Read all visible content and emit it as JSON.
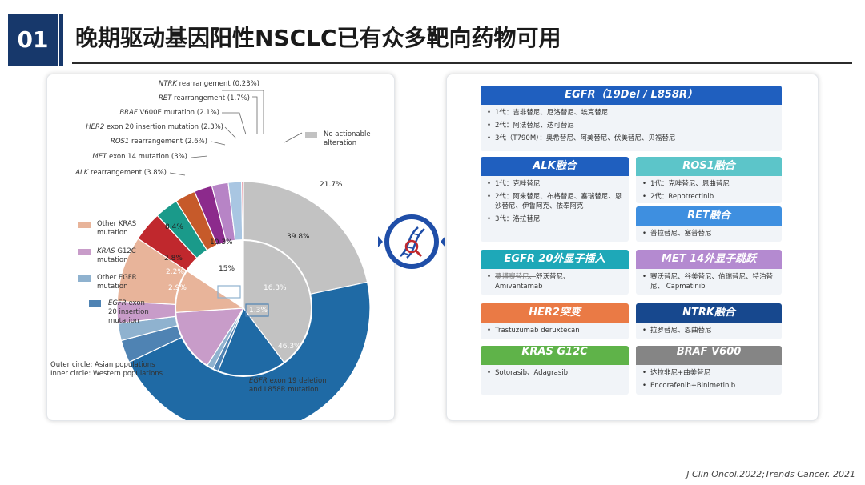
{
  "header": {
    "number": "01",
    "title": "晚期驱动基因阳性NSCLC已有众多靶向药物可用"
  },
  "chart": {
    "left_labels": [
      {
        "gene": "NTRK",
        "rest": " rearrangement (0.23%)"
      },
      {
        "gene": "RET",
        "rest": " rearrangement (1.7%)"
      },
      {
        "gene": "BRAF",
        "rest": " V600E mutation (2.1%)"
      },
      {
        "gene": "HER2",
        "rest": " exon 20 insertion mutation (2.3%)"
      },
      {
        "gene": "ROS1",
        "rest": " rearrangement (2.6%)"
      },
      {
        "gene": "MET",
        "rest": " exon 14 mutation (3%)"
      },
      {
        "gene": "ALK",
        "rest": " rearrangement (3.8%)"
      }
    ],
    "no_action_legend": "No actionable alteration",
    "legends": [
      {
        "line1_gene": "",
        "line1": "Other KRAS",
        "line2": "mutation",
        "color": "#e8b49a"
      },
      {
        "line1_gene": "KRAS",
        "line1": " G12C",
        "line2": "mutation",
        "color": "#c89cc9"
      },
      {
        "line1_gene": "",
        "line1": "Other EGFR",
        "line2": "mutation",
        "color": "#8fb2cf"
      },
      {
        "line1_gene": "EGFR",
        "line1": " exon",
        "line2": "20 insertion",
        "line3": "mutation",
        "color": "#4f83b3"
      }
    ],
    "outer_values": {
      "no_action": "21.7%",
      "egfr19": "46.3%",
      "other_kras": "8.4%",
      "kras_g12c": "2.8%",
      "other_egfr": "2.2%",
      "egfr20": "2.9%"
    },
    "inner_values": {
      "no_action": "39.8%",
      "egfr19": "16.3%",
      "other_kras": "10.3%",
      "kras_g12c": "15%",
      "other_egfr": "1.6%",
      "egfr20": "1.3%"
    },
    "note_line1": "Outer circle: Asian populations",
    "note_line2": "Inner circle: Western populations",
    "egfr_legend_gene": "EGFR",
    "egfr_legend_rest": " exon 19 deletion",
    "egfr_legend_line2": "and L858R mutation",
    "colors": {
      "no_action": "#c2c2c2",
      "egfr19": "#1f6aa5",
      "other_kras": "#e8b49a",
      "kras_g12c": "#c89cc9",
      "other_egfr": "#8fb2cf",
      "egfr20": "#4f83b3",
      "alk": "#c0282d",
      "met": "#1a9a8a",
      "ros1": "#c65a2a",
      "her2": "#8c2a8c",
      "braf": "#b784c6",
      "ret": "#a9c6e2",
      "ntrk": "#e07a8a"
    }
  },
  "cards": {
    "egfr": {
      "title": "EGFR（19Del / L858R）",
      "items": [
        "1代：吉非替尼、厄洛替尼、埃克替尼",
        "2代：阿法替尼、达可替尼",
        "3代（T790M）：奥希替尼、阿美替尼、伏美替尼、贝福替尼"
      ],
      "color": "#1f5fbf"
    },
    "alk": {
      "title": "ALK融合",
      "items": [
        "1代：克唑替尼",
        "2代：阿来替尼、布格替尼、塞瑞替尼、恩沙替尼、伊鲁阿克、依奉阿克",
        "3代：洛拉替尼"
      ],
      "color": "#1f5fbf"
    },
    "ros1": {
      "title": "ROS1融合",
      "items": [
        "1代：克唑替尼、恩曲替尼",
        "2代：Repotrectinib"
      ],
      "color": "#5cc5c9"
    },
    "ret": {
      "title": "RET融合",
      "items": [
        "普拉替尼、塞普替尼"
      ],
      "color": "#3e8fe0"
    },
    "egfr20": {
      "title": "EGFR 20外显子插入",
      "strike": "莫博赛替尼、",
      "items_rest": "舒沃替尼、",
      "items_line2": "Amivantamab",
      "color": "#1ea8b8"
    },
    "met": {
      "title": "MET 14外显子跳跃",
      "items": [
        "赛沃替尼、谷美替尼、伯瑞替尼、特泊替尼、 Capmatinib"
      ],
      "color": "#b48ad0"
    },
    "her2": {
      "title": "HER2突变",
      "items": [
        "Trastuzumab deruxtecan"
      ],
      "color": "#ea7a45"
    },
    "ntrk": {
      "title": "NTRK融合",
      "items": [
        "拉罗替尼、恩曲替尼"
      ],
      "color": "#17488e"
    },
    "kras": {
      "title": "KRAS G12C",
      "items": [
        "Sotorasib、Adagrasib"
      ],
      "color": "#5fb349"
    },
    "braf": {
      "title": "BRAF V600",
      "items": [
        "达拉非尼+曲美替尼",
        "Encorafenib+Binimetinib"
      ],
      "color": "#858585"
    }
  },
  "citation": "J Clin Oncol.2022;Trends Cancer. 2021",
  "icons": {
    "center": "dna-magnifier-icon"
  }
}
